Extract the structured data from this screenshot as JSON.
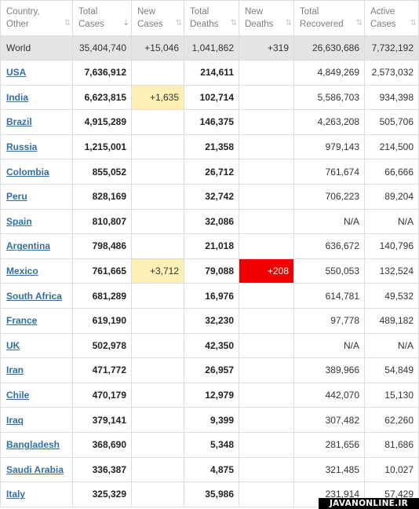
{
  "columns": [
    {
      "line1": "Country,",
      "line2": "Other",
      "sort": "⇅"
    },
    {
      "line1": "Total",
      "line2": "Cases",
      "sort": "⇣"
    },
    {
      "line1": "New",
      "line2": "Cases",
      "sort": "⇅"
    },
    {
      "line1": "Total",
      "line2": "Deaths",
      "sort": "⇅"
    },
    {
      "line1": "New",
      "line2": "Deaths",
      "sort": "⇅"
    },
    {
      "line1": "Total",
      "line2": "Recovered",
      "sort": "⇅"
    },
    {
      "line1": "Active",
      "line2": "Cases",
      "sort": "⇅"
    }
  ],
  "world": {
    "country": "World",
    "total_cases": "35,404,740",
    "new_cases": "+15,046",
    "total_deaths": "1,041,862",
    "new_deaths": "+319",
    "total_recovered": "26,630,686",
    "active_cases": "7,732,192"
  },
  "rows": [
    {
      "country": "USA",
      "total_cases": "7,636,912",
      "new_cases": "",
      "total_deaths": "214,611",
      "new_deaths": "",
      "total_recovered": "4,849,269",
      "active_cases": "2,573,032"
    },
    {
      "country": "India",
      "total_cases": "6,623,815",
      "new_cases": "+1,635",
      "total_deaths": "102,714",
      "new_deaths": "",
      "total_recovered": "5,586,703",
      "active_cases": "934,398"
    },
    {
      "country": "Brazil",
      "total_cases": "4,915,289",
      "new_cases": "",
      "total_deaths": "146,375",
      "new_deaths": "",
      "total_recovered": "4,263,208",
      "active_cases": "505,706"
    },
    {
      "country": "Russia",
      "total_cases": "1,215,001",
      "new_cases": "",
      "total_deaths": "21,358",
      "new_deaths": "",
      "total_recovered": "979,143",
      "active_cases": "214,500"
    },
    {
      "country": "Colombia",
      "total_cases": "855,052",
      "new_cases": "",
      "total_deaths": "26,712",
      "new_deaths": "",
      "total_recovered": "761,674",
      "active_cases": "66,666"
    },
    {
      "country": "Peru",
      "total_cases": "828,169",
      "new_cases": "",
      "total_deaths": "32,742",
      "new_deaths": "",
      "total_recovered": "706,223",
      "active_cases": "89,204"
    },
    {
      "country": "Spain",
      "total_cases": "810,807",
      "new_cases": "",
      "total_deaths": "32,086",
      "new_deaths": "",
      "total_recovered": "N/A",
      "active_cases": "N/A"
    },
    {
      "country": "Argentina",
      "total_cases": "798,486",
      "new_cases": "",
      "total_deaths": "21,018",
      "new_deaths": "",
      "total_recovered": "636,672",
      "active_cases": "140,796"
    },
    {
      "country": "Mexico",
      "total_cases": "761,665",
      "new_cases": "+3,712",
      "total_deaths": "79,088",
      "new_deaths": "+208",
      "total_recovered": "550,053",
      "active_cases": "132,524"
    },
    {
      "country": "South Africa",
      "total_cases": "681,289",
      "new_cases": "",
      "total_deaths": "16,976",
      "new_deaths": "",
      "total_recovered": "614,781",
      "active_cases": "49,532"
    },
    {
      "country": "France",
      "total_cases": "619,190",
      "new_cases": "",
      "total_deaths": "32,230",
      "new_deaths": "",
      "total_recovered": "97,778",
      "active_cases": "489,182"
    },
    {
      "country": "UK",
      "total_cases": "502,978",
      "new_cases": "",
      "total_deaths": "42,350",
      "new_deaths": "",
      "total_recovered": "N/A",
      "active_cases": "N/A"
    },
    {
      "country": "Iran",
      "total_cases": "471,772",
      "new_cases": "",
      "total_deaths": "26,957",
      "new_deaths": "",
      "total_recovered": "389,966",
      "active_cases": "54,849"
    },
    {
      "country": "Chile",
      "total_cases": "470,179",
      "new_cases": "",
      "total_deaths": "12,979",
      "new_deaths": "",
      "total_recovered": "442,070",
      "active_cases": "15,130"
    },
    {
      "country": "Iraq",
      "total_cases": "379,141",
      "new_cases": "",
      "total_deaths": "9,399",
      "new_deaths": "",
      "total_recovered": "307,482",
      "active_cases": "62,260"
    },
    {
      "country": "Bangladesh",
      "total_cases": "368,690",
      "new_cases": "",
      "total_deaths": "5,348",
      "new_deaths": "",
      "total_recovered": "281,656",
      "active_cases": "81,686"
    },
    {
      "country": "Saudi Arabia",
      "total_cases": "336,387",
      "new_cases": "",
      "total_deaths": "4,875",
      "new_deaths": "",
      "total_recovered": "321,485",
      "active_cases": "10,027"
    },
    {
      "country": "Italy",
      "total_cases": "325,329",
      "new_cases": "",
      "total_deaths": "35,986",
      "new_deaths": "",
      "total_recovered": "231,914",
      "active_cases": "57,429"
    }
  ],
  "watermark": "JAVANONLINE.IR",
  "colors": {
    "new_cases_highlight": "#fcf0b4",
    "new_deaths_highlight": "#f00000",
    "link": "#2f6fa6",
    "world_row": "#e4e4e4"
  }
}
